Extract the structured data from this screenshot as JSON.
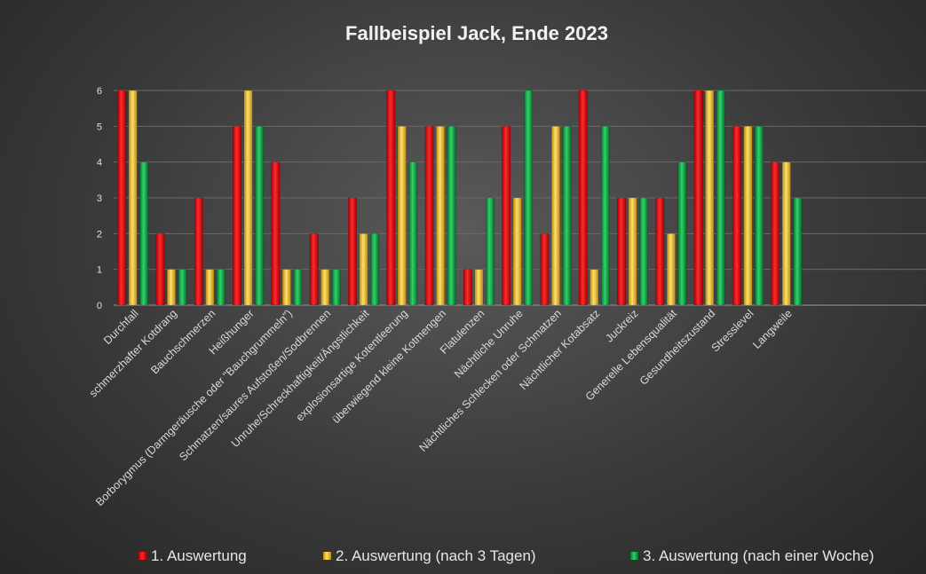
{
  "chart_data": {
    "type": "bar",
    "title": "Fallbeispiel Jack, Ende 2023",
    "xlabel": "",
    "ylabel": "",
    "ylim": [
      0,
      6
    ],
    "yticks": [
      "0",
      "1",
      "2",
      "3",
      "4",
      "5",
      "6"
    ],
    "grid": true,
    "legend_position": "bottom",
    "categories": [
      "Durchfall",
      "schmerzhafter Kotdrang",
      "Bauchschmerzen",
      "Heißhunger",
      "Borborygmus (Darmgeräusche oder \"Bauchgrummeln\")",
      "Schmatzen/saures Aufstoßen/Sodbrennen",
      "Unruhe/Schreckhaftigkeit/Ängstlichkeit",
      "explosionsartige Kotentleerung",
      "überwiegend kleine Kotmengen",
      "Flatulenzen",
      "Nächtliche Unruhe",
      "Nächtliches Schlecken oder Schmatzen",
      "Nächtlicher Kotabsatz",
      "Juckreiz",
      "Generelle Lebensqualität",
      "Gesundheitszustand",
      "Stresslevel",
      "Langweile"
    ],
    "series": [
      {
        "name": "1. Auswertung",
        "color": "#e8000b",
        "values": [
          6,
          2,
          3,
          5,
          4,
          2,
          3,
          6,
          5,
          1,
          5,
          2,
          6,
          3,
          3,
          6,
          5,
          4
        ]
      },
      {
        "name": "2. Auswertung (nach 3 Tagen)",
        "color": "#f2c12e",
        "values": [
          6,
          1,
          1,
          6,
          1,
          1,
          2,
          5,
          5,
          1,
          3,
          5,
          1,
          3,
          2,
          6,
          5,
          4
        ]
      },
      {
        "name": "3. Auswertung (nach einer Woche)",
        "color": "#18a848",
        "values": [
          4,
          1,
          1,
          5,
          1,
          1,
          2,
          4,
          5,
          3,
          6,
          5,
          5,
          3,
          4,
          6,
          5,
          3
        ]
      }
    ]
  }
}
